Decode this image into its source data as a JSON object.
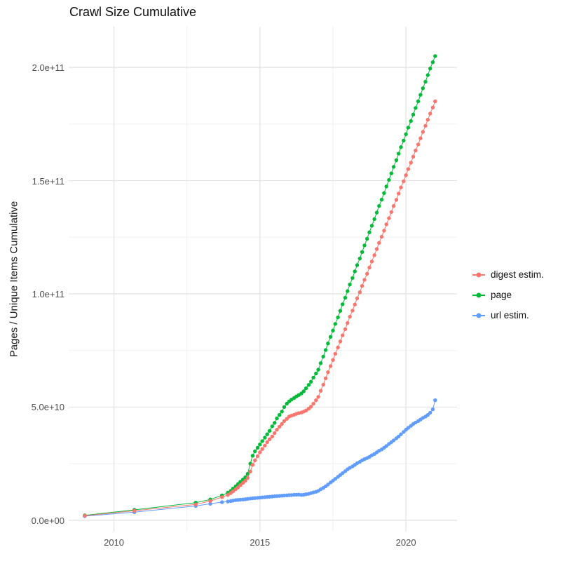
{
  "title": "Crawl Size Cumulative",
  "chart_data": {
    "type": "scatter",
    "title": "Crawl Size Cumulative",
    "xlabel": "",
    "ylabel": "Pages / Unique Items Cumulative",
    "y_unit": 1000000000,
    "xlim": [
      2008.45,
      2021.75
    ],
    "ylim": [
      -5,
      218
    ],
    "grid": "on",
    "x_ticks": [
      {
        "value": 2010,
        "label": "2010"
      },
      {
        "value": 2015,
        "label": "2015"
      },
      {
        "value": 2020,
        "label": "2020"
      }
    ],
    "y_ticks": [
      {
        "value": 0,
        "label": "0.0e+00"
      },
      {
        "value": 50,
        "label": "5.0e+10"
      },
      {
        "value": 100,
        "label": "1.0e+11"
      },
      {
        "value": 150,
        "label": "1.5e+11"
      },
      {
        "value": 200,
        "label": "2.0e+11"
      }
    ],
    "x_minor_ticks": [
      2012.5,
      2017.5
    ],
    "y_minor_ticks": [
      25,
      75,
      125,
      175
    ],
    "legend": {
      "position": "right",
      "items": [
        {
          "label": "digest estim.",
          "color": "#F8766D"
        },
        {
          "label": "page",
          "color": "#00BA38"
        },
        {
          "label": "url estim.",
          "color": "#619CFF"
        }
      ]
    },
    "series": [
      {
        "name": "url estim.",
        "color": "#619CFF",
        "points": [
          [
            2009.0,
            1.8
          ],
          [
            2010.7,
            3.6
          ],
          [
            2012.8,
            6.3
          ],
          [
            2013.3,
            7.3
          ],
          [
            2013.7,
            8.0
          ],
          [
            2013.9,
            8.3
          ],
          [
            2014.0,
            8.5
          ],
          [
            2014.08,
            8.7
          ],
          [
            2014.17,
            8.9
          ],
          [
            2014.25,
            9.0
          ],
          [
            2014.33,
            9.1
          ],
          [
            2014.42,
            9.2
          ],
          [
            2014.5,
            9.3
          ],
          [
            2014.58,
            9.45
          ],
          [
            2014.67,
            9.6
          ],
          [
            2014.75,
            9.7
          ],
          [
            2014.83,
            9.8
          ],
          [
            2014.92,
            9.9
          ],
          [
            2015.0,
            10.0
          ],
          [
            2015.08,
            10.1
          ],
          [
            2015.17,
            10.2
          ],
          [
            2015.25,
            10.3
          ],
          [
            2015.33,
            10.4
          ],
          [
            2015.42,
            10.5
          ],
          [
            2015.5,
            10.6
          ],
          [
            2015.58,
            10.7
          ],
          [
            2015.67,
            10.75
          ],
          [
            2015.75,
            10.85
          ],
          [
            2015.83,
            10.95
          ],
          [
            2015.92,
            11.0
          ],
          [
            2016.0,
            11.1
          ],
          [
            2016.08,
            11.15
          ],
          [
            2016.17,
            11.25
          ],
          [
            2016.25,
            11.3
          ],
          [
            2016.33,
            11.35
          ],
          [
            2016.42,
            11.2
          ],
          [
            2016.5,
            11.3
          ],
          [
            2016.58,
            11.5
          ],
          [
            2016.67,
            11.7
          ],
          [
            2016.75,
            12.0
          ],
          [
            2016.83,
            12.3
          ],
          [
            2016.92,
            12.6
          ],
          [
            2017.0,
            13.0
          ],
          [
            2017.08,
            13.7
          ],
          [
            2017.17,
            14.3
          ],
          [
            2017.25,
            15.0
          ],
          [
            2017.33,
            15.8
          ],
          [
            2017.42,
            16.7
          ],
          [
            2017.5,
            17.5
          ],
          [
            2017.58,
            18.3
          ],
          [
            2017.67,
            19.2
          ],
          [
            2017.75,
            20.0
          ],
          [
            2017.83,
            20.8
          ],
          [
            2017.92,
            21.7
          ],
          [
            2018.0,
            22.5
          ],
          [
            2018.08,
            23.2
          ],
          [
            2018.17,
            23.8
          ],
          [
            2018.25,
            24.5
          ],
          [
            2018.33,
            25.2
          ],
          [
            2018.42,
            25.8
          ],
          [
            2018.5,
            26.5
          ],
          [
            2018.58,
            27.0
          ],
          [
            2018.67,
            27.5
          ],
          [
            2018.75,
            28.0
          ],
          [
            2018.83,
            28.7
          ],
          [
            2018.92,
            29.3
          ],
          [
            2019.0,
            30.0
          ],
          [
            2019.08,
            30.7
          ],
          [
            2019.17,
            31.3
          ],
          [
            2019.25,
            32.0
          ],
          [
            2019.33,
            32.8
          ],
          [
            2019.42,
            33.7
          ],
          [
            2019.5,
            34.5
          ],
          [
            2019.58,
            35.3
          ],
          [
            2019.67,
            36.2
          ],
          [
            2019.75,
            37.0
          ],
          [
            2019.83,
            38.0
          ],
          [
            2019.92,
            39.0
          ],
          [
            2020.0,
            40.0
          ],
          [
            2020.08,
            40.8
          ],
          [
            2020.17,
            41.7
          ],
          [
            2020.25,
            42.5
          ],
          [
            2020.33,
            43.2
          ],
          [
            2020.42,
            43.8
          ],
          [
            2020.5,
            44.5
          ],
          [
            2020.58,
            45.2
          ],
          [
            2020.67,
            45.8
          ],
          [
            2020.75,
            46.5
          ],
          [
            2020.83,
            47.5
          ],
          [
            2020.92,
            49.0
          ],
          [
            2021.0,
            53.0
          ]
        ]
      },
      {
        "name": "page",
        "color": "#00BA38",
        "points": [
          [
            2009.0,
            2.2
          ],
          [
            2010.7,
            4.6
          ],
          [
            2012.8,
            7.8
          ],
          [
            2013.3,
            9.2
          ],
          [
            2013.7,
            11.0
          ],
          [
            2013.9,
            12.2
          ],
          [
            2014.0,
            13.0
          ],
          [
            2014.08,
            14.0
          ],
          [
            2014.17,
            15.0
          ],
          [
            2014.25,
            16.0
          ],
          [
            2014.33,
            17.0
          ],
          [
            2014.42,
            18.0
          ],
          [
            2014.5,
            19.0
          ],
          [
            2014.58,
            20.5
          ],
          [
            2014.67,
            25.0
          ],
          [
            2014.75,
            28.5
          ],
          [
            2014.83,
            30.5
          ],
          [
            2014.92,
            32.0
          ],
          [
            2015.0,
            33.5
          ],
          [
            2015.08,
            35.0
          ],
          [
            2015.17,
            36.5
          ],
          [
            2015.25,
            38.0
          ],
          [
            2015.33,
            39.5
          ],
          [
            2015.42,
            41.5
          ],
          [
            2015.5,
            43.0
          ],
          [
            2015.58,
            45.0
          ],
          [
            2015.67,
            46.5
          ],
          [
            2015.75,
            48.0
          ],
          [
            2015.83,
            50.0
          ],
          [
            2015.92,
            51.5
          ],
          [
            2016.0,
            52.5
          ],
          [
            2016.08,
            53.3
          ],
          [
            2016.17,
            54.0
          ],
          [
            2016.25,
            54.7
          ],
          [
            2016.33,
            55.3
          ],
          [
            2016.42,
            56.0
          ],
          [
            2016.5,
            57.0
          ],
          [
            2016.58,
            58.3
          ],
          [
            2016.67,
            59.8
          ],
          [
            2016.75,
            61.2
          ],
          [
            2016.83,
            63.0
          ],
          [
            2016.92,
            64.8
          ],
          [
            2017.0,
            66.5
          ],
          [
            2017.08,
            69.4
          ],
          [
            2017.17,
            72.3
          ],
          [
            2017.25,
            75.2
          ],
          [
            2017.33,
            78.1
          ],
          [
            2017.42,
            81.0
          ],
          [
            2017.5,
            83.8
          ],
          [
            2017.58,
            86.7
          ],
          [
            2017.67,
            89.6
          ],
          [
            2017.75,
            92.5
          ],
          [
            2017.83,
            95.4
          ],
          [
            2017.92,
            98.3
          ],
          [
            2018.0,
            101.2
          ],
          [
            2018.08,
            104.1
          ],
          [
            2018.17,
            107.0
          ],
          [
            2018.25,
            109.9
          ],
          [
            2018.33,
            112.7
          ],
          [
            2018.42,
            115.6
          ],
          [
            2018.5,
            118.5
          ],
          [
            2018.58,
            121.4
          ],
          [
            2018.67,
            124.3
          ],
          [
            2018.75,
            127.2
          ],
          [
            2018.83,
            130.1
          ],
          [
            2018.92,
            133.0
          ],
          [
            2019.0,
            135.9
          ],
          [
            2019.08,
            138.8
          ],
          [
            2019.17,
            141.6
          ],
          [
            2019.25,
            144.5
          ],
          [
            2019.33,
            147.4
          ],
          [
            2019.42,
            150.3
          ],
          [
            2019.5,
            153.2
          ],
          [
            2019.58,
            156.1
          ],
          [
            2019.67,
            159.0
          ],
          [
            2019.75,
            161.9
          ],
          [
            2019.83,
            164.8
          ],
          [
            2019.92,
            167.7
          ],
          [
            2020.0,
            170.5
          ],
          [
            2020.08,
            173.4
          ],
          [
            2020.17,
            176.3
          ],
          [
            2020.25,
            179.2
          ],
          [
            2020.33,
            182.1
          ],
          [
            2020.42,
            185.0
          ],
          [
            2020.5,
            187.9
          ],
          [
            2020.58,
            190.8
          ],
          [
            2020.67,
            193.7
          ],
          [
            2020.75,
            196.6
          ],
          [
            2020.83,
            199.5
          ],
          [
            2020.92,
            202.3
          ],
          [
            2021.0,
            205.0
          ]
        ]
      },
      {
        "name": "digest estim.",
        "color": "#F8766D",
        "points": [
          [
            2009.0,
            2.0
          ],
          [
            2010.7,
            4.2
          ],
          [
            2012.8,
            7.0
          ],
          [
            2013.3,
            8.5
          ],
          [
            2013.7,
            10.2
          ],
          [
            2013.9,
            11.2
          ],
          [
            2014.0,
            12.0
          ],
          [
            2014.08,
            12.8
          ],
          [
            2014.17,
            13.7
          ],
          [
            2014.25,
            14.5
          ],
          [
            2014.33,
            15.5
          ],
          [
            2014.42,
            16.5
          ],
          [
            2014.5,
            17.5
          ],
          [
            2014.58,
            18.7
          ],
          [
            2014.67,
            21.5
          ],
          [
            2014.75,
            24.5
          ],
          [
            2014.83,
            26.5
          ],
          [
            2014.92,
            28.3
          ],
          [
            2015.0,
            30.0
          ],
          [
            2015.08,
            31.5
          ],
          [
            2015.17,
            33.0
          ],
          [
            2015.25,
            34.5
          ],
          [
            2015.33,
            35.8
          ],
          [
            2015.42,
            37.0
          ],
          [
            2015.5,
            38.5
          ],
          [
            2015.58,
            40.0
          ],
          [
            2015.67,
            41.3
          ],
          [
            2015.75,
            42.5
          ],
          [
            2015.83,
            43.8
          ],
          [
            2015.92,
            44.8
          ],
          [
            2016.0,
            45.8
          ],
          [
            2016.08,
            46.2
          ],
          [
            2016.17,
            46.6
          ],
          [
            2016.25,
            47.0
          ],
          [
            2016.33,
            47.3
          ],
          [
            2016.42,
            47.6
          ],
          [
            2016.5,
            48.0
          ],
          [
            2016.58,
            48.5
          ],
          [
            2016.67,
            49.3
          ],
          [
            2016.75,
            50.2
          ],
          [
            2016.83,
            51.5
          ],
          [
            2016.92,
            53.0
          ],
          [
            2017.0,
            54.5
          ],
          [
            2017.08,
            57.2
          ],
          [
            2017.17,
            59.9
          ],
          [
            2017.25,
            62.7
          ],
          [
            2017.33,
            65.4
          ],
          [
            2017.42,
            68.1
          ],
          [
            2017.5,
            70.8
          ],
          [
            2017.58,
            73.5
          ],
          [
            2017.67,
            76.3
          ],
          [
            2017.75,
            79.0
          ],
          [
            2017.83,
            81.7
          ],
          [
            2017.92,
            84.4
          ],
          [
            2018.0,
            87.1
          ],
          [
            2018.08,
            89.9
          ],
          [
            2018.17,
            92.6
          ],
          [
            2018.25,
            95.3
          ],
          [
            2018.33,
            98.0
          ],
          [
            2018.42,
            100.7
          ],
          [
            2018.5,
            103.5
          ],
          [
            2018.58,
            106.2
          ],
          [
            2018.67,
            108.9
          ],
          [
            2018.75,
            111.6
          ],
          [
            2018.83,
            114.3
          ],
          [
            2018.92,
            117.1
          ],
          [
            2019.0,
            119.8
          ],
          [
            2019.08,
            122.5
          ],
          [
            2019.17,
            125.2
          ],
          [
            2019.25,
            127.9
          ],
          [
            2019.33,
            130.7
          ],
          [
            2019.42,
            133.4
          ],
          [
            2019.5,
            136.1
          ],
          [
            2019.58,
            138.8
          ],
          [
            2019.67,
            141.5
          ],
          [
            2019.75,
            144.3
          ],
          [
            2019.83,
            147.0
          ],
          [
            2019.92,
            149.7
          ],
          [
            2020.0,
            152.4
          ],
          [
            2020.08,
            155.1
          ],
          [
            2020.17,
            157.9
          ],
          [
            2020.25,
            160.6
          ],
          [
            2020.33,
            163.3
          ],
          [
            2020.42,
            166.0
          ],
          [
            2020.5,
            168.7
          ],
          [
            2020.58,
            171.5
          ],
          [
            2020.67,
            174.2
          ],
          [
            2020.75,
            176.9
          ],
          [
            2020.83,
            179.6
          ],
          [
            2020.92,
            182.3
          ],
          [
            2021.0,
            185.0
          ]
        ]
      }
    ],
    "style": {
      "panel_background": "#ffffff",
      "grid_major_color": "#e2e2e2",
      "grid_minor_color": "#f0f0f0",
      "tick_label_color": "#4d4d4d",
      "point_radius": 2.7
    }
  }
}
